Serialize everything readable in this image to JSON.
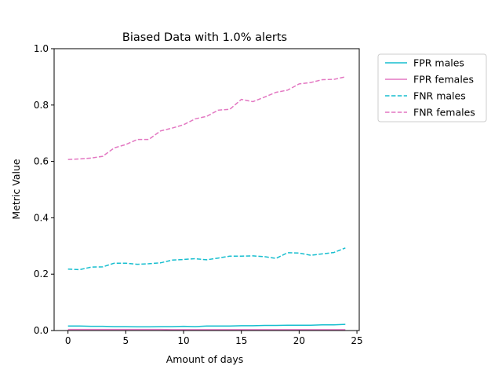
{
  "chart_data": {
    "type": "line",
    "title": "Biased Data with 1.0% alerts",
    "xlabel": "Amount of days",
    "ylabel": "Metric Value",
    "xlim": [
      -1.2,
      25.2
    ],
    "ylim": [
      0,
      1.0
    ],
    "xticks": [
      0,
      5,
      10,
      15,
      20,
      25
    ],
    "xtick_labels": [
      "0",
      "5",
      "10",
      "15",
      "20",
      "25"
    ],
    "yticks": [
      0.0,
      0.2,
      0.4,
      0.6,
      0.8,
      1.0
    ],
    "ytick_labels": [
      "0.0",
      "0.2",
      "0.4",
      "0.6",
      "0.8",
      "1.0"
    ],
    "grid": false,
    "legend_position": "outside right, top",
    "x": [
      0,
      1,
      2,
      3,
      4,
      5,
      6,
      7,
      8,
      9,
      10,
      11,
      12,
      13,
      14,
      15,
      16,
      17,
      18,
      19,
      20,
      21,
      22,
      23,
      24
    ],
    "series": [
      {
        "name": "FPR males",
        "color": "#17becf",
        "style": "solid",
        "values": [
          0.016,
          0.016,
          0.015,
          0.015,
          0.014,
          0.014,
          0.013,
          0.013,
          0.014,
          0.014,
          0.015,
          0.014,
          0.016,
          0.016,
          0.016,
          0.017,
          0.017,
          0.018,
          0.018,
          0.019,
          0.019,
          0.019,
          0.02,
          0.02,
          0.022
        ]
      },
      {
        "name": "FPR females",
        "color": "#e377c2",
        "style": "solid",
        "values": [
          0.004,
          0.004,
          0.004,
          0.004,
          0.004,
          0.004,
          0.004,
          0.004,
          0.004,
          0.003,
          0.003,
          0.003,
          0.003,
          0.003,
          0.003,
          0.003,
          0.003,
          0.003,
          0.003,
          0.003,
          0.003,
          0.003,
          0.003,
          0.003,
          0.003
        ]
      },
      {
        "name": "FNR males",
        "color": "#17becf",
        "style": "dashed",
        "values": [
          0.218,
          0.216,
          0.225,
          0.226,
          0.239,
          0.239,
          0.235,
          0.237,
          0.24,
          0.25,
          0.252,
          0.255,
          0.251,
          0.257,
          0.264,
          0.264,
          0.265,
          0.262,
          0.256,
          0.276,
          0.275,
          0.267,
          0.272,
          0.277,
          0.293
        ]
      },
      {
        "name": "FNR females",
        "color": "#e377c2",
        "style": "dashed",
        "values": [
          0.607,
          0.609,
          0.612,
          0.618,
          0.648,
          0.66,
          0.678,
          0.678,
          0.708,
          0.718,
          0.73,
          0.751,
          0.76,
          0.782,
          0.785,
          0.82,
          0.812,
          0.828,
          0.845,
          0.853,
          0.875,
          0.88,
          0.89,
          0.891,
          0.9
        ]
      }
    ]
  }
}
